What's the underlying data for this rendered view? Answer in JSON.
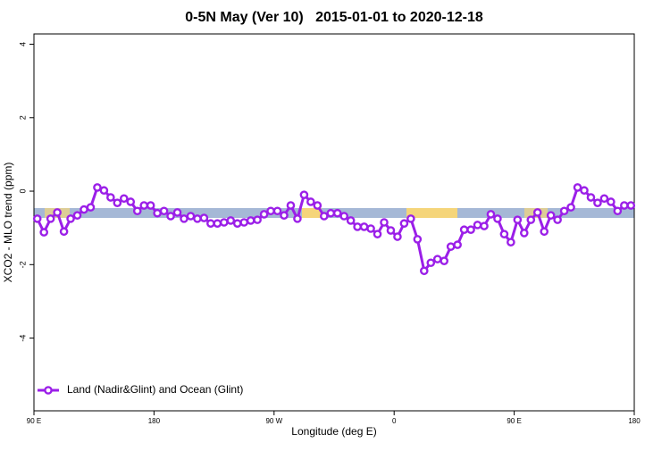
{
  "chart_data": {
    "type": "line",
    "title": "0-5N May (Ver 10)   2015-01-01 to 2020-12-18",
    "x_label": "Longitude (deg E)",
    "y_label": "XCO2 - MLO trend (ppm)",
    "xlim": [
      90,
      540
    ],
    "ylim": [
      -5.98,
      4.28
    ],
    "xticks": [
      {
        "value": 90,
        "label": "90 E"
      },
      180,
      {
        "value": 270,
        "label": "90 W"
      },
      {
        "value": 360,
        "label": "0"
      },
      {
        "value": 450,
        "label": "90 E"
      },
      {
        "value": 540,
        "label": "180"
      }
    ],
    "yticks": [
      4,
      2,
      0,
      -2,
      -4
    ],
    "legend": "bottom-left",
    "x": [
      92.5,
      97.5,
      102.5,
      107.5,
      112.5,
      117.5,
      122.5,
      127.5,
      132.5,
      137.5,
      142.5,
      147.5,
      152.5,
      157.5,
      162.5,
      167.5,
      172.5,
      177.5,
      182.5,
      187.5,
      192.5,
      197.5,
      202.5,
      207.5,
      212.5,
      217.5,
      222.5,
      227.5,
      232.5,
      237.5,
      242.5,
      247.5,
      252.5,
      257.5,
      262.5,
      267.5,
      272.5,
      277.5,
      282.5,
      287.5,
      292.5,
      297.5,
      302.5,
      307.5,
      312.5,
      317.5,
      322.5,
      327.5,
      332.5,
      337.5,
      342.5,
      347.5,
      352.5,
      357.5,
      362.5,
      367.5,
      372.5,
      377.5,
      382.5,
      387.5,
      392.5,
      397.5,
      402.5,
      407.5,
      412.5,
      417.5,
      422.5,
      427.5,
      432.5,
      437.5,
      442.5,
      447.5,
      452.5,
      457.5,
      462.5,
      467.5,
      472.5,
      477.5,
      482.5,
      487.5,
      492.5,
      497.5,
      502.5,
      507.5,
      512.5,
      517.5,
      522.5,
      527.5,
      532.5,
      537.5
    ],
    "series": [
      {
        "name": "Land (Nadir&Glint) and Ocean (Glint)",
        "color": "#9b1fe8",
        "values": [
          -0.75,
          -1.12,
          -0.75,
          -0.58,
          -1.1,
          -0.75,
          -0.66,
          -0.5,
          -0.44,
          0.1,
          0.02,
          -0.17,
          -0.32,
          -0.2,
          -0.29,
          -0.54,
          -0.39,
          -0.39,
          -0.6,
          -0.54,
          -0.68,
          -0.58,
          -0.75,
          -0.68,
          -0.75,
          -0.73,
          -0.88,
          -0.88,
          -0.85,
          -0.8,
          -0.88,
          -0.85,
          -0.8,
          -0.78,
          -0.63,
          -0.54,
          -0.54,
          -0.66,
          -0.39,
          -0.75,
          -0.1,
          -0.29,
          -0.39,
          -0.68,
          -0.6,
          -0.6,
          -0.68,
          -0.8,
          -0.97,
          -0.97,
          -1.02,
          -1.17,
          -0.85,
          -1.07,
          -1.24,
          -0.88,
          -0.75,
          -1.31,
          -2.17,
          -1.95,
          -1.85,
          -1.9,
          -1.51,
          -1.46,
          -1.05,
          -1.05,
          -0.92,
          -0.95,
          -0.63,
          -0.75,
          -1.17,
          -1.39,
          -0.78,
          -1.14,
          -0.78,
          -0.58,
          -1.1,
          -0.66,
          -0.78,
          -0.54,
          -0.44,
          0.1,
          0.02,
          -0.17,
          -0.32,
          -0.2,
          -0.29,
          -0.54,
          -0.39,
          -0.39
        ]
      }
    ]
  }
}
